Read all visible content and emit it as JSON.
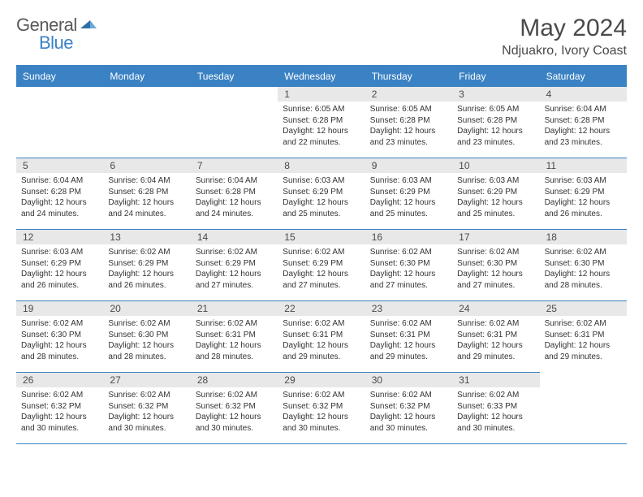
{
  "brand": {
    "word1": "General",
    "word2": "Blue"
  },
  "title": "May 2024",
  "location": "Ndjuakro, Ivory Coast",
  "colors": {
    "header_bg": "#3b82c4",
    "header_text": "#ffffff",
    "daynum_bg": "#e8e8e8",
    "text": "#4a4a4a",
    "border": "#3b82c4"
  },
  "weekdays": [
    "Sunday",
    "Monday",
    "Tuesday",
    "Wednesday",
    "Thursday",
    "Friday",
    "Saturday"
  ],
  "leading_blanks": 3,
  "days": [
    {
      "n": "1",
      "sunrise": "6:05 AM",
      "sunset": "6:28 PM",
      "dl1": "12 hours",
      "dl2": "22 minutes."
    },
    {
      "n": "2",
      "sunrise": "6:05 AM",
      "sunset": "6:28 PM",
      "dl1": "12 hours",
      "dl2": "23 minutes."
    },
    {
      "n": "3",
      "sunrise": "6:05 AM",
      "sunset": "6:28 PM",
      "dl1": "12 hours",
      "dl2": "23 minutes."
    },
    {
      "n": "4",
      "sunrise": "6:04 AM",
      "sunset": "6:28 PM",
      "dl1": "12 hours",
      "dl2": "23 minutes."
    },
    {
      "n": "5",
      "sunrise": "6:04 AM",
      "sunset": "6:28 PM",
      "dl1": "12 hours",
      "dl2": "24 minutes."
    },
    {
      "n": "6",
      "sunrise": "6:04 AM",
      "sunset": "6:28 PM",
      "dl1": "12 hours",
      "dl2": "24 minutes."
    },
    {
      "n": "7",
      "sunrise": "6:04 AM",
      "sunset": "6:28 PM",
      "dl1": "12 hours",
      "dl2": "24 minutes."
    },
    {
      "n": "8",
      "sunrise": "6:03 AM",
      "sunset": "6:29 PM",
      "dl1": "12 hours",
      "dl2": "25 minutes."
    },
    {
      "n": "9",
      "sunrise": "6:03 AM",
      "sunset": "6:29 PM",
      "dl1": "12 hours",
      "dl2": "25 minutes."
    },
    {
      "n": "10",
      "sunrise": "6:03 AM",
      "sunset": "6:29 PM",
      "dl1": "12 hours",
      "dl2": "25 minutes."
    },
    {
      "n": "11",
      "sunrise": "6:03 AM",
      "sunset": "6:29 PM",
      "dl1": "12 hours",
      "dl2": "26 minutes."
    },
    {
      "n": "12",
      "sunrise": "6:03 AM",
      "sunset": "6:29 PM",
      "dl1": "12 hours",
      "dl2": "26 minutes."
    },
    {
      "n": "13",
      "sunrise": "6:02 AM",
      "sunset": "6:29 PM",
      "dl1": "12 hours",
      "dl2": "26 minutes."
    },
    {
      "n": "14",
      "sunrise": "6:02 AM",
      "sunset": "6:29 PM",
      "dl1": "12 hours",
      "dl2": "27 minutes."
    },
    {
      "n": "15",
      "sunrise": "6:02 AM",
      "sunset": "6:29 PM",
      "dl1": "12 hours",
      "dl2": "27 minutes."
    },
    {
      "n": "16",
      "sunrise": "6:02 AM",
      "sunset": "6:30 PM",
      "dl1": "12 hours",
      "dl2": "27 minutes."
    },
    {
      "n": "17",
      "sunrise": "6:02 AM",
      "sunset": "6:30 PM",
      "dl1": "12 hours",
      "dl2": "27 minutes."
    },
    {
      "n": "18",
      "sunrise": "6:02 AM",
      "sunset": "6:30 PM",
      "dl1": "12 hours",
      "dl2": "28 minutes."
    },
    {
      "n": "19",
      "sunrise": "6:02 AM",
      "sunset": "6:30 PM",
      "dl1": "12 hours",
      "dl2": "28 minutes."
    },
    {
      "n": "20",
      "sunrise": "6:02 AM",
      "sunset": "6:30 PM",
      "dl1": "12 hours",
      "dl2": "28 minutes."
    },
    {
      "n": "21",
      "sunrise": "6:02 AM",
      "sunset": "6:31 PM",
      "dl1": "12 hours",
      "dl2": "28 minutes."
    },
    {
      "n": "22",
      "sunrise": "6:02 AM",
      "sunset": "6:31 PM",
      "dl1": "12 hours",
      "dl2": "29 minutes."
    },
    {
      "n": "23",
      "sunrise": "6:02 AM",
      "sunset": "6:31 PM",
      "dl1": "12 hours",
      "dl2": "29 minutes."
    },
    {
      "n": "24",
      "sunrise": "6:02 AM",
      "sunset": "6:31 PM",
      "dl1": "12 hours",
      "dl2": "29 minutes."
    },
    {
      "n": "25",
      "sunrise": "6:02 AM",
      "sunset": "6:31 PM",
      "dl1": "12 hours",
      "dl2": "29 minutes."
    },
    {
      "n": "26",
      "sunrise": "6:02 AM",
      "sunset": "6:32 PM",
      "dl1": "12 hours",
      "dl2": "30 minutes."
    },
    {
      "n": "27",
      "sunrise": "6:02 AM",
      "sunset": "6:32 PM",
      "dl1": "12 hours",
      "dl2": "30 minutes."
    },
    {
      "n": "28",
      "sunrise": "6:02 AM",
      "sunset": "6:32 PM",
      "dl1": "12 hours",
      "dl2": "30 minutes."
    },
    {
      "n": "29",
      "sunrise": "6:02 AM",
      "sunset": "6:32 PM",
      "dl1": "12 hours",
      "dl2": "30 minutes."
    },
    {
      "n": "30",
      "sunrise": "6:02 AM",
      "sunset": "6:32 PM",
      "dl1": "12 hours",
      "dl2": "30 minutes."
    },
    {
      "n": "31",
      "sunrise": "6:02 AM",
      "sunset": "6:33 PM",
      "dl1": "12 hours",
      "dl2": "30 minutes."
    }
  ],
  "labels": {
    "sunrise": "Sunrise:",
    "sunset": "Sunset:",
    "daylight": "Daylight:",
    "and": "and"
  }
}
